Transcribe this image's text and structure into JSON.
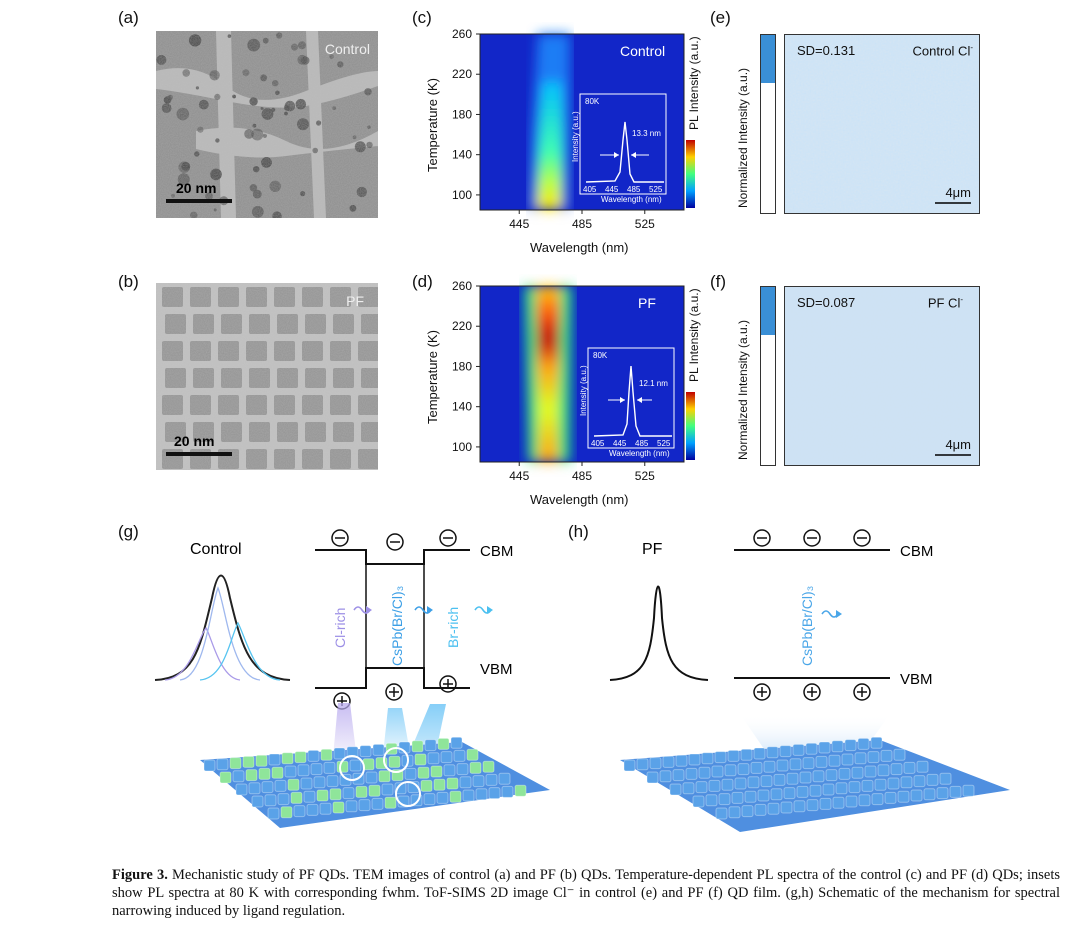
{
  "panels": {
    "a": {
      "label": "(a)",
      "tag": "Control",
      "scale": "20 nm"
    },
    "b": {
      "label": "(b)",
      "tag": "PF",
      "scale": "20 nm"
    },
    "c": {
      "label": "(c)",
      "title": "Control",
      "inset_temp": "80K",
      "inset_fwhm": "13.3 nm"
    },
    "d": {
      "label": "(d)",
      "title": "PF",
      "inset_temp": "80K",
      "inset_fwhm": "12.1 nm"
    },
    "e": {
      "label": "(e)",
      "sd": "SD=0.131",
      "name": "Control Cl",
      "sup": "-",
      "scale": "4μm",
      "ylabel": "Normalized Intensity (a.u.)"
    },
    "f": {
      "label": "(f)",
      "sd": "SD=0.087",
      "name": "PF Cl",
      "sup": "-",
      "scale": "4μm",
      "ylabel": "Normalized Intensity (a.u.)"
    },
    "g": {
      "label": "(g)",
      "title": "Control",
      "cbm": "CBM",
      "vbm": "VBM",
      "cl_rich": "Cl-rich",
      "br_rich": "Br-rich",
      "compound": "CsPb(Br/Cl)₃"
    },
    "h": {
      "label": "(h)",
      "title": "PF",
      "cbm": "CBM",
      "vbm": "VBM",
      "compound": "CsPb(Br/Cl)₃"
    }
  },
  "heatmap_axes": {
    "ylabel": "Temperature (K)",
    "xlabel": "Wavelength (nm)",
    "colorbar_label": "PL Intensity (a.u.)",
    "inset_xlabel": "Wavelength (nm)",
    "inset_ylabel": "Intensity (a.u.)",
    "inset_xticks": [
      "405",
      "445",
      "485",
      "525"
    ]
  },
  "chart_data": [
    {
      "type": "heatmap",
      "panel": "c",
      "title": "Control",
      "xlabel": "Wavelength (nm)",
      "ylabel": "Temperature (K)",
      "xlim": [
        420,
        550
      ],
      "ylim": [
        85,
        260
      ],
      "xticks": [
        445,
        485,
        525
      ],
      "yticks": [
        100,
        140,
        180,
        220,
        260
      ],
      "ridge": [
        {
          "temperature": 90,
          "peak_nm": 463,
          "fwhm_nm": 14
        },
        {
          "temperature": 150,
          "peak_nm": 462,
          "fwhm_nm": 16
        },
        {
          "temperature": 200,
          "peak_nm": 460,
          "fwhm_nm": 20
        },
        {
          "temperature": 260,
          "peak_nm": 456,
          "fwhm_nm": 26
        }
      ],
      "inset": {
        "temperature": "80K",
        "fwhm": "13.3 nm",
        "peak_nm": 462
      }
    },
    {
      "type": "heatmap",
      "panel": "d",
      "title": "PF",
      "xlabel": "Wavelength (nm)",
      "ylabel": "Temperature (K)",
      "xlim": [
        420,
        550
      ],
      "ylim": [
        85,
        260
      ],
      "xticks": [
        445,
        485,
        525
      ],
      "yticks": [
        100,
        140,
        180,
        220,
        260
      ],
      "ridge": [
        {
          "temperature": 90,
          "peak_nm": 463,
          "fwhm_nm": 12
        },
        {
          "temperature": 150,
          "peak_nm": 463,
          "fwhm_nm": 13
        },
        {
          "temperature": 205,
          "peak_nm": 463,
          "fwhm_nm": 14
        },
        {
          "temperature": 260,
          "peak_nm": 462,
          "fwhm_nm": 16
        }
      ],
      "inset": {
        "temperature": "80K",
        "fwhm": "12.1 nm",
        "peak_nm": 462
      }
    }
  ],
  "caption": {
    "bold": "Figure 3.",
    "text": " Mechanistic study of PF QDs. TEM images of control (a) and PF (b) QDs. Temperature-dependent PL spectra of the control (c) and PF (d) QDs; insets show PL spectra at 80 K with corresponding fwhm. ToF-SIMS 2D image Cl⁻ in control (e) and PF (f) QD film. (g,h) Schematic of the mechanism for spectral narrowing induced by ligand regulation."
  },
  "colors": {
    "sims_fill": "#cfe3f2",
    "bar_blue": "#3a8fd6",
    "green_cube": "#8fe59a",
    "blue_cube": "#5aa2e8"
  }
}
